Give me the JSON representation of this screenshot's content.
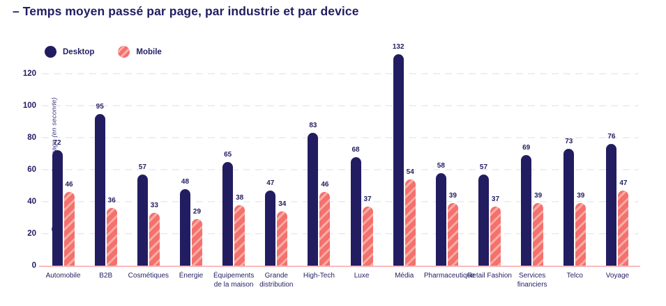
{
  "title": "– Temps moyen passé par page, par industrie et par device",
  "colors": {
    "navy": "#221d61",
    "coral": "#f4716c",
    "coral_stripe": "#f8a6a0",
    "baseline": "#f7bac0",
    "gridline": "#efeef6",
    "background": "#ffffff"
  },
  "legend": {
    "desktop_label": "Desktop",
    "mobile_label": "Mobile"
  },
  "chart_data": {
    "type": "bar",
    "title": "– Temps moyen passé par page, par industrie et par device",
    "xlabel": "",
    "ylabel": "Temps moyen passé par page (en seconde)",
    "ylim": [
      0,
      132
    ],
    "yticks": [
      0,
      20,
      40,
      60,
      80,
      100,
      120
    ],
    "grid": "horizontal-dashed",
    "legend_position": "top-left",
    "categories": [
      "Automobile",
      "B2B",
      "Cosmétiques",
      "Énergie",
      "Équipements de la maison",
      "Grande distribution",
      "High-Tech",
      "Luxe",
      "Média",
      "Pharmaceutique",
      "Retail Fashion",
      "Services financiers",
      "Telco",
      "Voyage"
    ],
    "series": [
      {
        "name": "Desktop",
        "color": "#221d61",
        "pattern": "solid",
        "values": [
          72,
          95,
          57,
          48,
          65,
          47,
          83,
          68,
          132,
          58,
          57,
          69,
          73,
          76
        ]
      },
      {
        "name": "Mobile",
        "color": "#f4716c",
        "pattern": "diagonal-stripes",
        "values": [
          46,
          36,
          33,
          29,
          38,
          34,
          46,
          37,
          54,
          39,
          37,
          39,
          39,
          47
        ]
      }
    ]
  }
}
